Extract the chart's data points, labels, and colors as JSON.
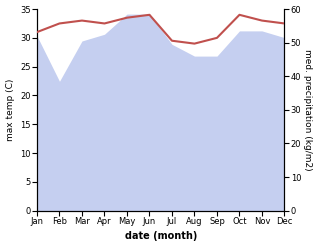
{
  "months": [
    "Jan",
    "Feb",
    "Mar",
    "Apr",
    "May",
    "Jun",
    "Jul",
    "Aug",
    "Sep",
    "Oct",
    "Nov",
    "Dec"
  ],
  "temperature": [
    31.0,
    32.5,
    33.0,
    32.5,
    33.5,
    34.0,
    29.5,
    29.0,
    30.0,
    34.0,
    33.0,
    32.5
  ],
  "precipitation": [
    52.0,
    38.5,
    50.5,
    52.5,
    58.5,
    58.5,
    49.5,
    46.0,
    46.0,
    53.5,
    53.5,
    51.5
  ],
  "temp_color": "#c0504d",
  "precip_fill_color": "#c5cff0",
  "ylim_temp": [
    0,
    35
  ],
  "ylim_precip": [
    0,
    60
  ],
  "xlabel": "date (month)",
  "ylabel_left": "max temp (C)",
  "ylabel_right": "med. precipitation (kg/m2)",
  "background_color": "#ffffff",
  "fig_width": 3.18,
  "fig_height": 2.47,
  "dpi": 100
}
